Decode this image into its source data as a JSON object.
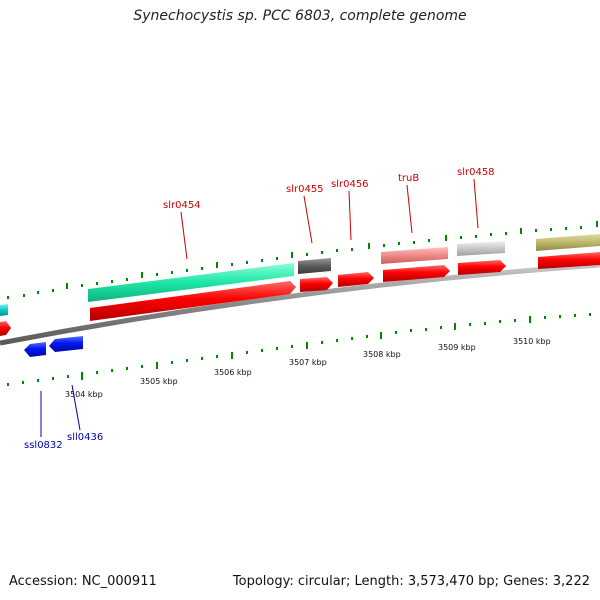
{
  "header": {
    "title": "Synechocystis sp. PCC 6803, complete genome"
  },
  "footer": {
    "accession": "Accession: NC_000911",
    "summary": "Topology: circular; Length: 3,573,470 bp; Genes: 3,222"
  },
  "scale": {
    "labels": [
      "3504 kbp",
      "3505 kbp",
      "3506 kbp",
      "3507 kbp",
      "3508 kbp",
      "3509 kbp",
      "3510 kbp"
    ]
  },
  "genes": {
    "slr0454": "slr0454",
    "slr0455": "slr0455",
    "slr0456": "slr0456",
    "truB": "truB",
    "slr0458": "slr0458",
    "ssl0832": "ssl0832",
    "sll0436": "sll0436"
  },
  "colors": {
    "forward": "#ee0000",
    "reverse": "#0022ee",
    "backbone": "#888888",
    "tick": "#008800"
  }
}
